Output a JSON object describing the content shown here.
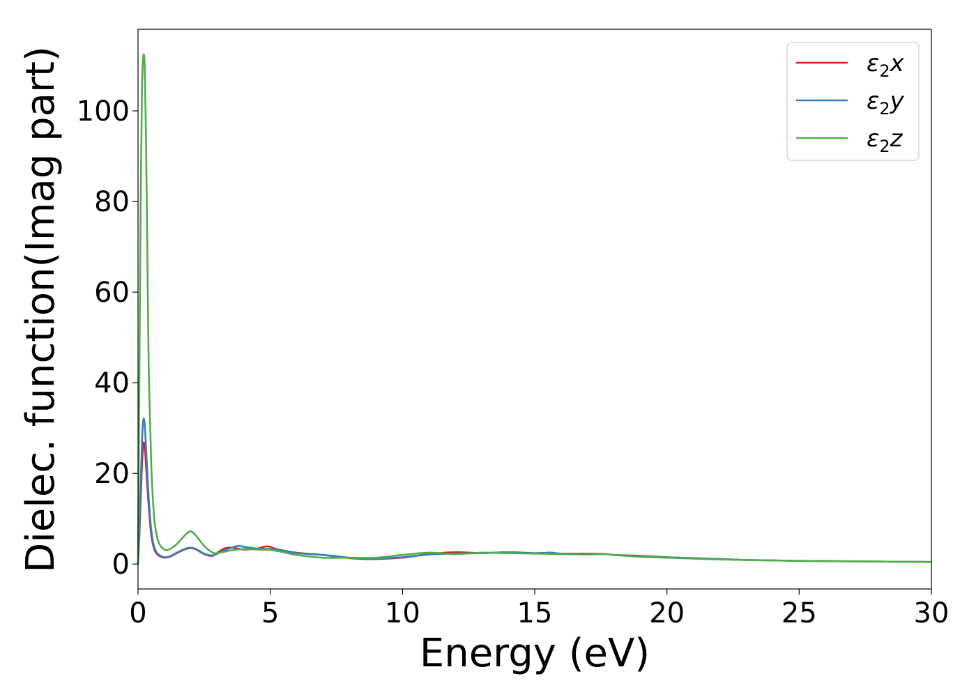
{
  "chart_data": {
    "type": "line",
    "title": "",
    "xlabel": "Energy (eV)",
    "ylabel": "Dielec. function(Imag part)",
    "xlim": [
      0,
      30
    ],
    "ylim": [
      -5.5,
      118
    ],
    "xticks": [
      0,
      5,
      10,
      15,
      20,
      25,
      30
    ],
    "yticks": [
      0,
      20,
      40,
      60,
      80,
      100
    ],
    "grid": false,
    "legend_position": "top-right",
    "series": [
      {
        "name": "x",
        "legend_prefix": "ε",
        "legend_subscript": "2",
        "legend_suffix": "x",
        "color": "#e41a1c",
        "x": [
          0,
          0.05,
          0.1,
          0.15,
          0.2,
          0.25,
          0.3,
          0.4,
          0.5,
          0.6,
          0.7,
          0.8,
          1.0,
          1.2,
          1.5,
          1.8,
          2.0,
          2.2,
          2.5,
          2.8,
          3.0,
          3.3,
          3.6,
          4.0,
          4.5,
          4.9,
          5.3,
          6.0,
          7.0,
          8.0,
          8.5,
          9.0,
          10.0,
          11.0,
          12.0,
          13.0,
          14.0,
          15.0,
          15.6,
          16.0,
          17.0,
          17.7,
          18.0,
          19.0,
          20.0,
          21.0,
          22.0,
          23.0,
          24.0,
          25.0,
          26.0,
          27.0,
          28.0,
          29.0,
          30.0
        ],
        "y": [
          0,
          6,
          14,
          22,
          26.5,
          26,
          22,
          13,
          6.5,
          3.5,
          2.3,
          1.8,
          1.4,
          1.6,
          2.5,
          3.3,
          3.5,
          3.2,
          2.2,
          1.8,
          2.5,
          3.5,
          3.6,
          3.2,
          3.4,
          3.9,
          3.2,
          2.5,
          2.0,
          1.3,
          1.1,
          1.1,
          1.4,
          2.2,
          2.6,
          2.4,
          2.6,
          2.4,
          2.5,
          2.3,
          2.3,
          2.2,
          2.0,
          1.8,
          1.5,
          1.3,
          1.1,
          0.9,
          0.8,
          0.7,
          0.65,
          0.6,
          0.55,
          0.5,
          0.45
        ]
      },
      {
        "name": "y",
        "legend_prefix": "ε",
        "legend_subscript": "2",
        "legend_suffix": "y",
        "color": "#377eb8",
        "x": [
          0,
          0.05,
          0.1,
          0.15,
          0.2,
          0.25,
          0.3,
          0.4,
          0.5,
          0.6,
          0.7,
          0.8,
          1.0,
          1.2,
          1.5,
          1.8,
          2.0,
          2.2,
          2.5,
          2.8,
          3.0,
          3.3,
          3.6,
          3.8,
          4.0,
          4.5,
          5.0,
          5.5,
          6.0,
          7.0,
          8.0,
          8.5,
          9.0,
          10.0,
          11.0,
          12.0,
          13.0,
          14.0,
          15.0,
          15.6,
          16.0,
          17.0,
          17.7,
          18.0,
          19.0,
          20.0,
          21.0,
          22.0,
          23.0,
          24.0,
          25.0,
          26.0,
          27.0,
          28.0,
          29.0,
          30.0
        ],
        "y": [
          0,
          7,
          17,
          27,
          31.8,
          31,
          26,
          15,
          7.5,
          4.0,
          2.6,
          2.0,
          1.5,
          1.7,
          2.6,
          3.4,
          3.6,
          3.3,
          2.3,
          1.9,
          2.3,
          3.1,
          3.7,
          4.0,
          3.8,
          3.4,
          3.3,
          3.0,
          2.4,
          2.0,
          1.4,
          1.2,
          1.2,
          1.5,
          2.1,
          2.3,
          2.4,
          2.6,
          2.4,
          2.5,
          2.3,
          2.2,
          2.2,
          2.0,
          1.7,
          1.5,
          1.3,
          1.1,
          0.9,
          0.8,
          0.7,
          0.65,
          0.6,
          0.55,
          0.5,
          0.45
        ]
      },
      {
        "name": "z",
        "legend_prefix": "ε",
        "legend_subscript": "2",
        "legend_suffix": "z",
        "color": "#4daf4a",
        "x": [
          0,
          0.05,
          0.1,
          0.15,
          0.2,
          0.25,
          0.3,
          0.35,
          0.4,
          0.5,
          0.6,
          0.7,
          0.8,
          1.0,
          1.2,
          1.5,
          1.8,
          2.0,
          2.2,
          2.5,
          2.8,
          3.0,
          3.5,
          4.0,
          4.5,
          5.0,
          5.5,
          6.0,
          7.0,
          8.0,
          9.0,
          10.0,
          11.0,
          12.0,
          13.0,
          14.0,
          15.0,
          16.0,
          17.0,
          17.7,
          18.0,
          19.0,
          20.0,
          21.0,
          22.0,
          23.0,
          24.0,
          25.0,
          26.0,
          27.0,
          28.0,
          29.0,
          30.0
        ],
        "y": [
          0,
          40,
          80,
          105,
          112,
          110,
          95,
          70,
          45,
          22,
          11,
          6.5,
          4.5,
          3.2,
          3.3,
          4.6,
          6.5,
          7.2,
          6.2,
          4.0,
          2.6,
          2.4,
          3.0,
          3.3,
          3.2,
          3.1,
          2.6,
          2.0,
          1.4,
          1.4,
          1.4,
          2.0,
          2.5,
          2.2,
          2.5,
          2.4,
          2.3,
          2.2,
          2.1,
          2.2,
          2.0,
          1.6,
          1.4,
          1.2,
          1.0,
          0.9,
          0.8,
          0.7,
          0.65,
          0.6,
          0.55,
          0.5,
          0.45
        ]
      }
    ]
  }
}
